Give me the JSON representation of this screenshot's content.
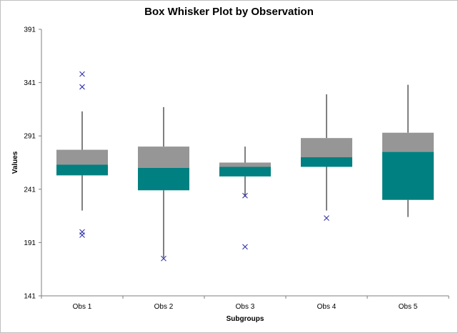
{
  "chart_data": {
    "type": "boxplot",
    "title": "Box Whisker Plot by Observation",
    "xlabel": "Subgroups",
    "ylabel": "Values",
    "ylim": [
      141,
      391
    ],
    "yticks": [
      141,
      191,
      241,
      291,
      341,
      391
    ],
    "categories": [
      "Obs 1",
      "Obs 2",
      "Obs 3",
      "Obs 4",
      "Obs 5"
    ],
    "boxes": [
      {
        "min": 221,
        "q1": 254,
        "median": 264,
        "q3": 278,
        "max": 314,
        "outliers": [
          349,
          337,
          201,
          198
        ]
      },
      {
        "min": 177,
        "q1": 240,
        "median": 261,
        "q3": 281,
        "max": 318,
        "outliers": [
          176
        ]
      },
      {
        "min": 234,
        "q1": 253,
        "median": 262,
        "q3": 266,
        "max": 281,
        "outliers": [
          235,
          187
        ]
      },
      {
        "min": 221,
        "q1": 262,
        "median": 271,
        "q3": 289,
        "max": 330,
        "outliers": [
          214
        ]
      },
      {
        "min": 215,
        "q1": 231,
        "median": 276,
        "q3": 294,
        "max": 339,
        "outliers": []
      }
    ],
    "colors": {
      "lower_box": "#008080",
      "upper_box": "#969696",
      "outlier": "#3333aa",
      "whisker": "#000000",
      "axis": "#7f7f7f"
    },
    "grid": false,
    "legend": "none"
  }
}
